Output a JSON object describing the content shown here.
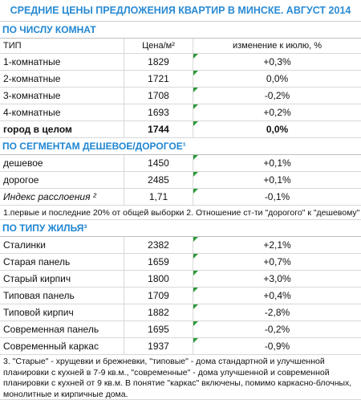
{
  "title": "СРЕДНИЕ ЦЕНЫ ПРЕДЛОЖЕНИЯ КВАРТИР В МИНСКЕ. АВГУСТ 2014",
  "sections": [
    {
      "heading": "ПО ЧИСЛУ КОМНАТ",
      "columns": [
        "ТИП",
        "Цена/м²",
        "изменение к июлю, %"
      ],
      "rows": [
        [
          "1-комнатные",
          "1829",
          "+0,3%"
        ],
        [
          "2-комнатные",
          "1721",
          "0,0%"
        ],
        [
          "3-комнатные",
          "1708",
          "-0,2%"
        ],
        [
          "4-комнатные",
          "1693",
          "+0,2%"
        ],
        [
          "город в целом",
          "1744",
          "0,0%"
        ]
      ]
    },
    {
      "heading": "ПО СЕГМЕНТАМ ДЕШЕВОЕ/ДОРОГОЕ¹",
      "rows": [
        [
          "дешевое",
          "1450",
          "+0,1%"
        ],
        [
          "дорогое",
          "2485",
          "+0,1%"
        ],
        [
          "Индекс расслоения ²",
          "1,71",
          "-0,1%"
        ]
      ],
      "note": "1.первые и последние 20% от общей выборки 2. Отношение ст-ти \"дорогого\" к \"дешевому\""
    },
    {
      "heading": "ПО ТИПУ ЖИЛЬЯ³",
      "rows": [
        [
          "Сталинки",
          "2382",
          "+2,1%"
        ],
        [
          "Старая панель",
          "1659",
          "+0,7%"
        ],
        [
          "Старый кирпич",
          "1800",
          "+3,0%"
        ],
        [
          "Типовая панель",
          "1709",
          "+0,4%"
        ],
        [
          "Типовой кирпич",
          "1882",
          "-2,8%"
        ],
        [
          "Современная панель",
          "1695",
          "-0,2%"
        ],
        [
          "Современный каркас",
          "1937",
          "-0,9%"
        ]
      ],
      "note": "3. \"Старые\" - хрущевки и брежневки, \"типовые\" - дома стандартной и улучшенной планировки с кухней в 7-9 кв.м., \"современные\" - дома улучшенной и современной планировки с кухней от 9 кв.м. В понятие \"каркас\" включены, помимо каркасно-блочных, монолитные и кирпичные дома."
    }
  ]
}
